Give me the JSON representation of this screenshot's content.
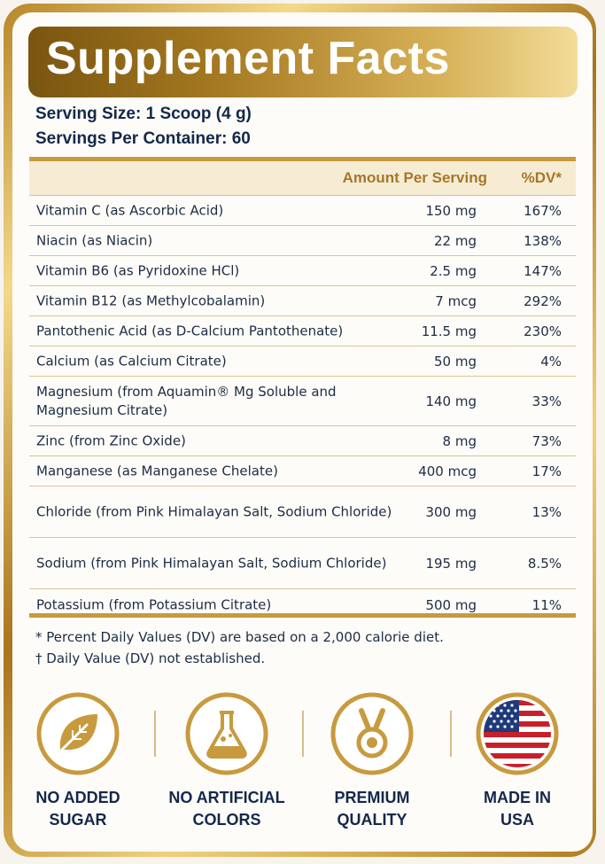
{
  "title": "Supplement Facts",
  "serving_size": "Serving Size: 1 Scoop (4 g)",
  "servings_per_container": "Servings Per Container: 60",
  "columns": {
    "amount": "Amount Per Serving",
    "dv": "%DV*"
  },
  "rows": [
    {
      "name": "Vitamin C (as Ascorbic Acid)",
      "amount": "150 mg",
      "dv": "167%"
    },
    {
      "name": "Niacin (as Niacin)",
      "amount": "22 mg",
      "dv": "138%"
    },
    {
      "name": "Vitamin B6 (as Pyridoxine HCl)",
      "amount": "2.5 mg",
      "dv": "147%"
    },
    {
      "name": "Vitamin B12 (as Methylcobalamin)",
      "amount": "7 mcg",
      "dv": "292%"
    },
    {
      "name": "Pantothenic Acid (as D-Calcium Pantothenate)",
      "amount": "11.5 mg",
      "dv": "230%"
    },
    {
      "name": "Calcium (as Calcium Citrate)",
      "amount": "50 mg",
      "dv": "4%"
    },
    {
      "name": "Magnesium (from Aquamin® Mg Soluble and Magnesium Citrate)",
      "amount": "140 mg",
      "dv": "33%"
    },
    {
      "name": "Zinc (from Zinc Oxide)",
      "amount": "8 mg",
      "dv": "73%"
    },
    {
      "name": "Manganese (as Manganese Chelate)",
      "amount": "400 mcg",
      "dv": "17%"
    },
    {
      "name": "Chloride (from Pink Himalayan Salt, Sodium Chloride)",
      "amount": "300 mg",
      "dv": "13%"
    },
    {
      "name": "Sodium (from Pink Himalayan Salt, Sodium Chloride)",
      "amount": "195 mg",
      "dv": "8.5%"
    },
    {
      "name": "Potassium (from Potassium Citrate)",
      "amount": "500 mg",
      "dv": "11%"
    }
  ],
  "footnotes": [
    "* Percent Daily Values (DV) are based on a 2,000 calorie diet.",
    "† Daily Value (DV) not established."
  ],
  "badges": [
    {
      "icon": "leaf-icon",
      "line1": "NO ADDED",
      "line2": "SUGAR"
    },
    {
      "icon": "flask-icon",
      "line1": "NO ARTIFICIAL",
      "line2": "COLORS"
    },
    {
      "icon": "medal-icon",
      "line1": "PREMIUM",
      "line2": "QUALITY"
    },
    {
      "icon": "us-flag-icon",
      "line1": "MADE IN",
      "line2": "USA"
    }
  ],
  "colors": {
    "gold": "#c89a3e",
    "navy": "#14284a",
    "header_fill": "#f6ecd3"
  }
}
